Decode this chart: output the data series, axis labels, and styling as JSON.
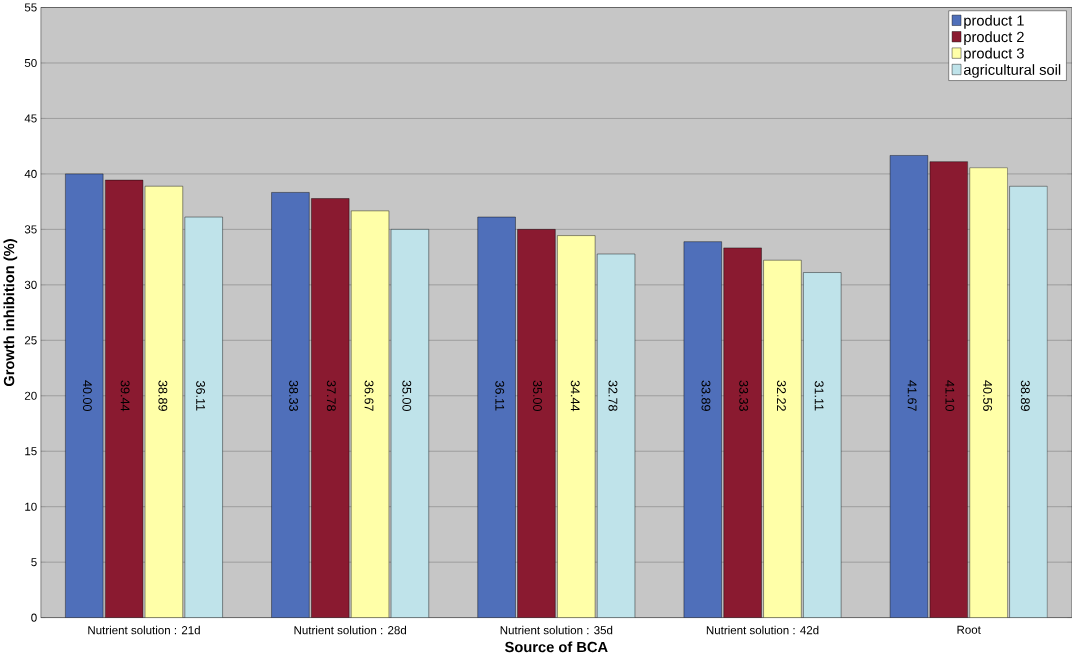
{
  "chart_data": {
    "type": "bar",
    "xlabel": "Source of BCA",
    "ylabel": "Growth inhibition (%)",
    "categories": [
      "Nutrient solution : 21d",
      "Nutrient solution : 28d",
      "Nutrient solution : 35d",
      "Nutrient solution : 42d",
      "Root"
    ],
    "series": [
      {
        "name": "product 1",
        "color": "#4f6fba",
        "values": [
          40.0,
          38.33,
          36.11,
          33.89,
          41.67
        ],
        "value_labels": [
          "40.00",
          "38.33",
          "36.11",
          "33.89",
          "41.67"
        ]
      },
      {
        "name": "product 2",
        "color": "#8a1a30",
        "values": [
          39.44,
          37.78,
          35.0,
          33.33,
          41.1
        ],
        "value_labels": [
          "39.44",
          "37.78",
          "35.00",
          "33.33",
          "41.10"
        ]
      },
      {
        "name": "product 3",
        "color": "#ffffa8",
        "values": [
          38.89,
          36.67,
          34.44,
          32.22,
          40.56
        ],
        "value_labels": [
          "38.89",
          "36.67",
          "34.44",
          "32.22",
          "40.56"
        ]
      },
      {
        "name": "agricultural soil",
        "color": "#bfe3ea",
        "values": [
          36.11,
          35.0,
          32.78,
          31.11,
          38.89
        ],
        "value_labels": [
          "36.11",
          "35.00",
          "32.78",
          "31.11",
          "38.89"
        ]
      }
    ],
    "ylim": [
      0,
      55
    ],
    "yticks": [
      0,
      5,
      10,
      15,
      20,
      25,
      30,
      35,
      40,
      45,
      50,
      55
    ],
    "grid": "y",
    "legend": "top right"
  }
}
